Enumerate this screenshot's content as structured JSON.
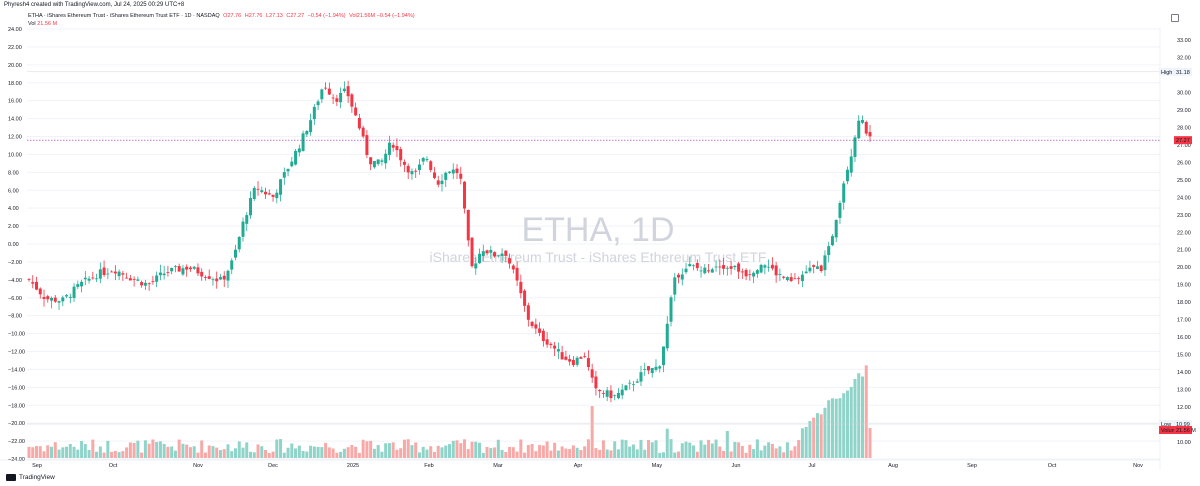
{
  "header": {
    "credit": "Phyresh4 created with TradingView.com, Jul 24, 2025 00:29 UTC+8"
  },
  "legend": {
    "title": "ETHA · iShares Ethereum Trust - iShares Ethereum Trust ETF · 1D · NASDAQ",
    "open": "O27.76",
    "high": "H27.76",
    "low": "L27.13",
    "close": "C27.27",
    "change": "−0.54 (−1.94%)",
    "vol_label": "Vol",
    "vol_value": "21.56 M",
    "vol_change": "Vol21.56M −0.54 (−1.94%)"
  },
  "watermark": {
    "title": "ETHA, 1D",
    "subtitle": "iShares Ethereum Trust - iShares Ethereum Trust ETF"
  },
  "footer": {
    "brand": "TradingView"
  },
  "colors": {
    "up": "#22ab94",
    "down": "#f23645",
    "up_volume": "#8fd3c9",
    "down_volume": "#f7a9a7",
    "price_line": "#9c27b0"
  },
  "chart_data": {
    "type": "candlestick",
    "symbol": "ETHA",
    "interval": "1D",
    "exchange": "NASDAQ",
    "right_axis": {
      "ylim": [
        9.0,
        33.0
      ],
      "ticks": [
        "33.00",
        "32.00",
        "30.00",
        "29.00",
        "28.00",
        "27.00",
        "26.00",
        "25.00",
        "24.00",
        "23.00",
        "22.00",
        "21.00",
        "20.00",
        "19.00",
        "18.00",
        "17.00",
        "16.00",
        "15.00",
        "14.00",
        "13.00",
        "12.00",
        "11.00",
        "10.00"
      ]
    },
    "left_axis": {
      "ticks": [
        "24.00",
        "22.00",
        "20.00",
        "18.00",
        "16.00",
        "14.00",
        "12.00",
        "10.00",
        "8.00",
        "6.00",
        "4.00",
        "2.00",
        "0.00",
        "−2.00",
        "−4.00",
        "−6.00",
        "−8.00",
        "−10.00",
        "−12.00",
        "−14.00",
        "−16.00",
        "−18.00",
        "−20.00",
        "−22.00",
        "−24.00"
      ]
    },
    "x_axis_labels": [
      "Sep",
      "Oct",
      "Nov",
      "Dec",
      "2025",
      "Feb",
      "Mar",
      "Apr",
      "May",
      "Jun",
      "Jul",
      "Aug",
      "Sep",
      "Oct",
      "Nov"
    ],
    "price_labels": {
      "high_label": "High",
      "high_value": "31.18",
      "last_value": "27.27",
      "low_label": "Low",
      "low_value": "10.99",
      "volume_label": "Volume",
      "volume_value": "21.56 M"
    },
    "last_price": 27.27,
    "series_close_estimates": [
      {
        "period": "Sep 2024",
        "close": 18.6
      },
      {
        "period": "Oct 2024",
        "close": 19.7
      },
      {
        "period": "Nov 2024",
        "close": 24.5
      },
      {
        "period": "Dec 2024",
        "close": 29.5
      },
      {
        "period": "Jan 2025",
        "close": 25.2
      },
      {
        "period": "Feb 2025",
        "close": 21.5
      },
      {
        "period": "Mar 2025",
        "close": 14.8
      },
      {
        "period": "Apr 2025",
        "close": 12.2
      },
      {
        "period": "May 2025",
        "close": 19.5
      },
      {
        "period": "Jun 2025",
        "close": 19.6
      },
      {
        "period": "Jul 2025",
        "close": 27.27
      }
    ]
  }
}
